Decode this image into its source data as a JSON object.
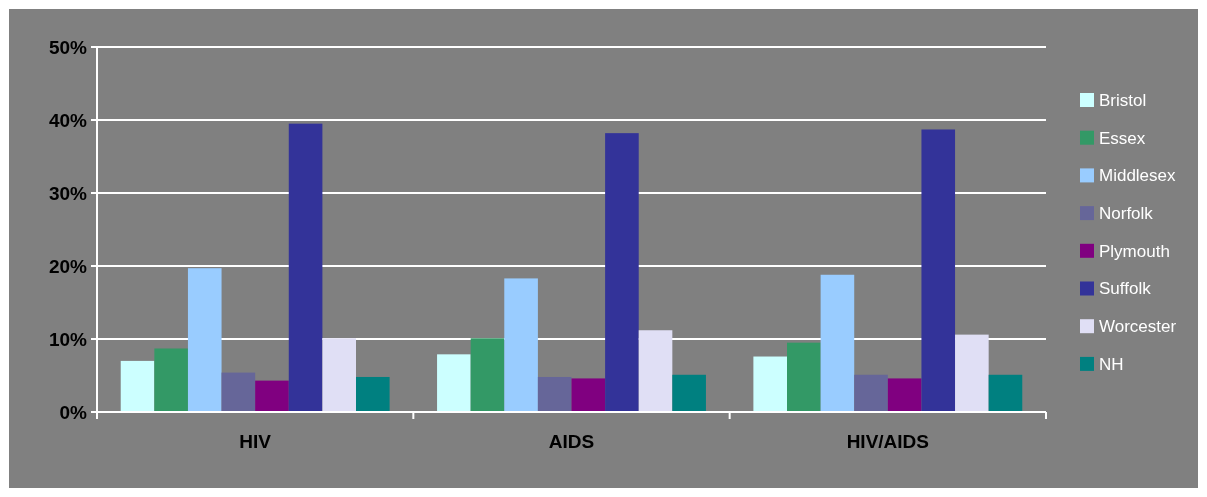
{
  "chart_data": {
    "type": "bar",
    "categories": [
      "HIV",
      "AIDS",
      "HIV/AIDS"
    ],
    "series": [
      {
        "name": "Bristol",
        "color": "#ccffff",
        "values": [
          7.0,
          7.9,
          7.6
        ]
      },
      {
        "name": "Essex",
        "color": "#339966",
        "values": [
          8.7,
          10.1,
          9.5
        ]
      },
      {
        "name": "Middlesex",
        "color": "#99ccff",
        "values": [
          19.7,
          18.3,
          18.8
        ]
      },
      {
        "name": "Norfolk",
        "color": "#666699",
        "values": [
          5.4,
          4.8,
          5.1
        ]
      },
      {
        "name": "Plymouth",
        "color": "#800080",
        "values": [
          4.3,
          4.6,
          4.6
        ]
      },
      {
        "name": "Suffolk",
        "color": "#333399",
        "values": [
          39.5,
          38.2,
          38.7
        ]
      },
      {
        "name": "Worcester",
        "color": "#e0dff5",
        "values": [
          10.1,
          11.2,
          10.6
        ]
      },
      {
        "name": "NH",
        "color": "#008080",
        "values": [
          4.8,
          5.1,
          5.1
        ]
      }
    ],
    "ylim": [
      0,
      50
    ],
    "yticks": [
      {
        "value": 0,
        "label": "0%"
      },
      {
        "value": 10,
        "label": "10%"
      },
      {
        "value": 20,
        "label": "20%"
      },
      {
        "value": 30,
        "label": "30%"
      },
      {
        "value": 40,
        "label": "40%"
      },
      {
        "value": 50,
        "label": "50%"
      }
    ],
    "grid": "y",
    "legend": "right"
  }
}
